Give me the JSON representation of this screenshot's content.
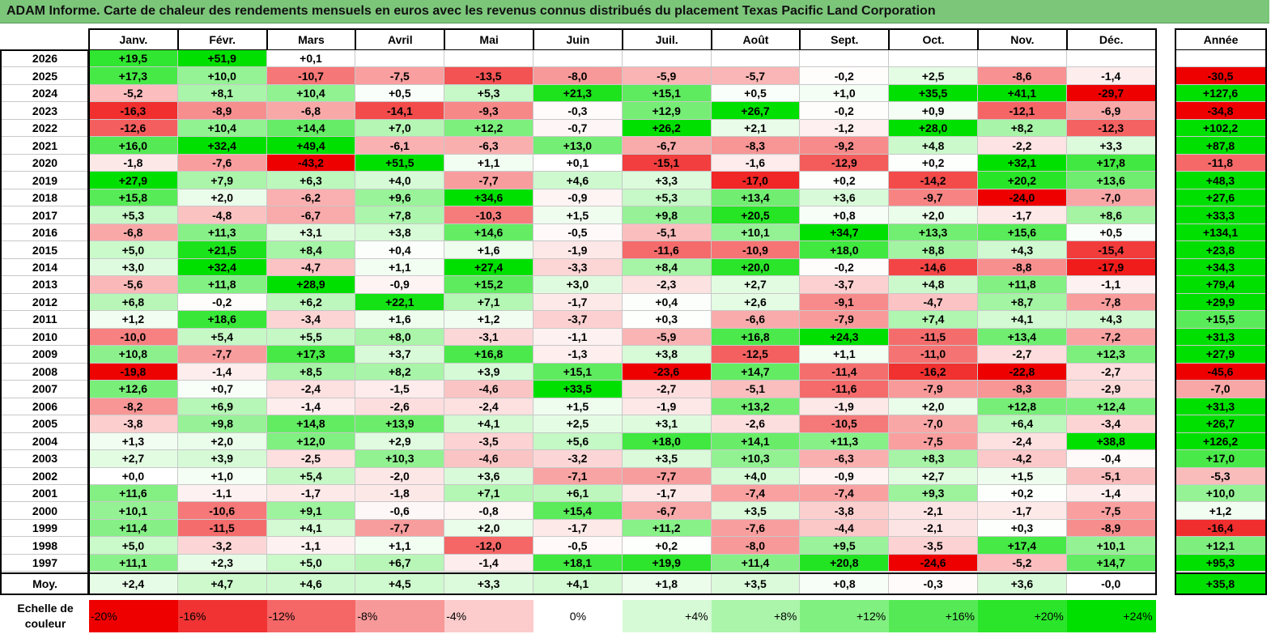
{
  "title": "ADAM Informe. Carte de chaleur des rendements mensuels en euros avec les revenus connus distribués du placement Texas Pacific Land Corporation",
  "colors": {
    "max_green": "#00e000",
    "max_red": "#ee0000",
    "title_bg": "#7cc67a"
  },
  "chart_data": {
    "type": "heatmap",
    "title": "ADAM Informe. Carte de chaleur des rendements mensuels en euros avec les revenus connus distribués du placement Texas Pacific Land Corporation",
    "months": [
      "Janv.",
      "Févr.",
      "Mars",
      "Avril",
      "Mai",
      "Juin",
      "Juil.",
      "Août",
      "Sept.",
      "Oct.",
      "Nov.",
      "Déc."
    ],
    "year_header": "Année",
    "rows": [
      {
        "year": "2026",
        "values": [
          19.5,
          51.9,
          0.1,
          null,
          null,
          null,
          null,
          null,
          null,
          null,
          null,
          null
        ],
        "annual": null
      },
      {
        "year": "2025",
        "values": [
          17.3,
          10.0,
          -10.7,
          -7.5,
          -13.5,
          -8.0,
          -5.9,
          -5.7,
          -0.2,
          2.5,
          -8.6,
          -1.4
        ],
        "annual": -30.5
      },
      {
        "year": "2024",
        "values": [
          -5.2,
          8.1,
          10.4,
          0.5,
          5.3,
          21.3,
          15.1,
          0.5,
          1.0,
          35.5,
          41.1,
          -29.7
        ],
        "annual": 127.6
      },
      {
        "year": "2023",
        "values": [
          -16.3,
          -8.9,
          -6.8,
          -14.1,
          -9.3,
          -0.3,
          12.9,
          26.7,
          -0.2,
          0.9,
          -12.1,
          -6.9
        ],
        "annual": -34.8
      },
      {
        "year": "2022",
        "values": [
          -12.6,
          10.4,
          14.4,
          7.0,
          12.2,
          -0.7,
          26.2,
          2.1,
          -1.2,
          28.0,
          8.2,
          -12.3
        ],
        "annual": 102.2
      },
      {
        "year": "2021",
        "values": [
          16.0,
          32.4,
          49.4,
          -6.1,
          -6.3,
          13.0,
          -6.7,
          -8.3,
          -9.2,
          4.8,
          -2.2,
          3.3
        ],
        "annual": 87.8
      },
      {
        "year": "2020",
        "values": [
          -1.8,
          -7.6,
          -43.2,
          51.5,
          1.1,
          0.1,
          -15.1,
          -1.6,
          -12.9,
          0.2,
          32.1,
          17.8
        ],
        "annual": -11.8
      },
      {
        "year": "2019",
        "values": [
          27.9,
          7.9,
          6.3,
          4.0,
          -7.7,
          4.6,
          3.3,
          -17.0,
          0.2,
          -14.2,
          20.2,
          13.6
        ],
        "annual": 48.3
      },
      {
        "year": "2018",
        "values": [
          15.8,
          2.0,
          -6.2,
          9.6,
          34.6,
          -0.9,
          5.3,
          13.4,
          3.6,
          -9.7,
          -24.0,
          -7.0
        ],
        "annual": 27.6
      },
      {
        "year": "2017",
        "values": [
          5.3,
          -4.8,
          -6.7,
          7.8,
          -10.3,
          1.5,
          9.8,
          20.5,
          0.8,
          2.0,
          -1.7,
          8.6
        ],
        "annual": 33.3
      },
      {
        "year": "2016",
        "values": [
          -6.8,
          11.3,
          3.1,
          3.8,
          14.6,
          -0.5,
          -5.1,
          10.1,
          34.7,
          13.3,
          15.6,
          0.5
        ],
        "annual": 134.1
      },
      {
        "year": "2015",
        "values": [
          5.0,
          21.5,
          8.4,
          0.4,
          1.6,
          -1.9,
          -11.6,
          -10.9,
          18.0,
          8.8,
          4.3,
          -15.4
        ],
        "annual": 23.8
      },
      {
        "year": "2014",
        "values": [
          3.0,
          32.4,
          -4.7,
          1.1,
          27.4,
          -3.3,
          8.4,
          20.0,
          -0.2,
          -14.6,
          -8.8,
          -17.9
        ],
        "annual": 34.3
      },
      {
        "year": "2013",
        "values": [
          -5.6,
          11.8,
          28.9,
          -0.9,
          15.2,
          3.0,
          -2.3,
          2.7,
          -3.7,
          4.8,
          11.8,
          -1.1
        ],
        "annual": 79.4
      },
      {
        "year": "2012",
        "values": [
          6.8,
          -0.2,
          6.2,
          22.1,
          7.1,
          -1.7,
          0.4,
          2.6,
          -9.1,
          -4.7,
          8.7,
          -7.8
        ],
        "annual": 29.9
      },
      {
        "year": "2011",
        "values": [
          1.2,
          18.6,
          -3.4,
          1.6,
          1.2,
          -3.7,
          0.3,
          -6.6,
          -7.9,
          7.4,
          4.1,
          4.3
        ],
        "annual": 15.5
      },
      {
        "year": "2010",
        "values": [
          -10.0,
          5.4,
          5.5,
          8.0,
          -3.1,
          -1.1,
          -5.9,
          16.8,
          24.3,
          -11.5,
          13.4,
          -7.2
        ],
        "annual": 31.3
      },
      {
        "year": "2009",
        "values": [
          10.8,
          -7.7,
          17.3,
          3.7,
          16.8,
          -1.3,
          3.8,
          -12.5,
          1.1,
          -11.0,
          -2.7,
          12.3
        ],
        "annual": 27.9
      },
      {
        "year": "2008",
        "values": [
          -19.8,
          -1.4,
          8.5,
          8.2,
          3.9,
          15.1,
          -23.6,
          14.7,
          -11.4,
          -16.2,
          -22.8,
          -2.7
        ],
        "annual": -45.6
      },
      {
        "year": "2007",
        "values": [
          12.6,
          0.7,
          -2.4,
          -1.5,
          -4.6,
          33.5,
          -2.7,
          -5.1,
          -11.6,
          -7.9,
          -8.3,
          -2.9
        ],
        "annual": -7.0
      },
      {
        "year": "2006",
        "values": [
          -8.2,
          6.9,
          -1.4,
          -2.6,
          -2.4,
          1.5,
          -1.9,
          13.2,
          -1.9,
          2.0,
          12.8,
          12.4
        ],
        "annual": 31.3
      },
      {
        "year": "2005",
        "values": [
          -3.8,
          9.8,
          14.8,
          13.9,
          4.1,
          2.5,
          3.1,
          -2.6,
          -10.5,
          -7.0,
          6.4,
          -3.4
        ],
        "annual": 26.7
      },
      {
        "year": "2004",
        "values": [
          1.3,
          2.0,
          12.0,
          2.9,
          -3.5,
          5.6,
          18.0,
          14.1,
          11.3,
          -7.5,
          -2.4,
          38.8
        ],
        "annual": 126.2
      },
      {
        "year": "2003",
        "values": [
          2.7,
          3.9,
          -2.5,
          10.3,
          -4.6,
          -3.2,
          3.5,
          10.3,
          -6.3,
          8.3,
          -4.2,
          -0.4
        ],
        "annual": 17.0
      },
      {
        "year": "2002",
        "values": [
          0.0,
          1.0,
          5.4,
          -2.0,
          3.6,
          -7.1,
          -7.7,
          4.0,
          -0.9,
          2.7,
          1.5,
          -5.1
        ],
        "annual": -5.3
      },
      {
        "year": "2001",
        "values": [
          11.6,
          -1.1,
          -1.7,
          -1.8,
          7.1,
          6.1,
          -1.7,
          -7.4,
          -7.4,
          9.3,
          0.2,
          -1.4
        ],
        "annual": 10.0
      },
      {
        "year": "2000",
        "values": [
          10.1,
          -10.6,
          9.1,
          -0.6,
          -0.8,
          15.4,
          -6.7,
          3.5,
          -3.8,
          -2.1,
          -1.7,
          -7.5
        ],
        "annual": 1.2
      },
      {
        "year": "1999",
        "values": [
          11.4,
          -11.5,
          4.1,
          -7.7,
          2.0,
          -1.7,
          11.2,
          -7.6,
          -4.4,
          -2.1,
          0.3,
          -8.9
        ],
        "annual": -16.4
      },
      {
        "year": "1998",
        "values": [
          5.0,
          -3.2,
          -1.1,
          1.1,
          -12.0,
          -0.5,
          0.2,
          -8.0,
          9.5,
          -3.5,
          17.4,
          10.1
        ],
        "annual": 12.1
      },
      {
        "year": "1997",
        "values": [
          11.1,
          2.3,
          5.0,
          6.7,
          -1.4,
          18.1,
          19.9,
          11.4,
          20.8,
          -24.6,
          -5.2,
          14.7
        ],
        "annual": 95.3
      }
    ],
    "average": {
      "label": "Moy.",
      "values": [
        2.4,
        4.7,
        4.6,
        4.5,
        3.3,
        4.1,
        1.8,
        3.5,
        0.8,
        -0.3,
        3.6,
        -0.0
      ],
      "annual": 35.8
    },
    "average_display": [
      "+2,4",
      "+4,7",
      "+4,6",
      "+4,5",
      "+3,3",
      "+4,1",
      "+1,8",
      "+3,5",
      "+0,8",
      "-0,3",
      "+3,6",
      "-0,0"
    ],
    "scale": {
      "label": "Echelle de couleur",
      "stops": [
        -20,
        -16,
        -12,
        -8,
        -4,
        0,
        4,
        8,
        12,
        16,
        20,
        24
      ],
      "labels": [
        "-20%",
        "-16%",
        "-12%",
        "-8%",
        "-4%",
        "0%",
        "+4%",
        "+8%",
        "+12%",
        "+16%",
        "+20%",
        "+24%"
      ]
    }
  }
}
